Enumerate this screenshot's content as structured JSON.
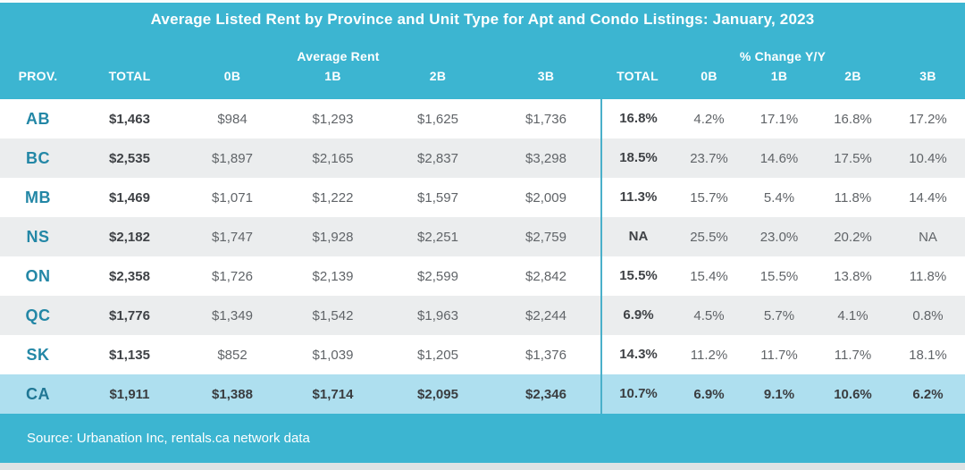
{
  "title": "Average Listed Rent by Province and Unit Type for Apt and Condo Listings: January, 2023",
  "header": {
    "prov_label": "PROV.",
    "rent_group_label": "Average Rent",
    "change_group_label": "% Change Y/Y",
    "rent_columns": [
      "TOTAL",
      "0B",
      "1B",
      "2B",
      "3B"
    ],
    "change_columns": [
      "TOTAL",
      "0B",
      "1B",
      "2B",
      "3B"
    ]
  },
  "rows": [
    {
      "prov": "AB",
      "rent": [
        "$1,463",
        "$984",
        "$1,293",
        "$1,625",
        "$1,736"
      ],
      "change": [
        "16.8%",
        "4.2%",
        "17.1%",
        "16.8%",
        "17.2%"
      ],
      "highlight": false
    },
    {
      "prov": "BC",
      "rent": [
        "$2,535",
        "$1,897",
        "$2,165",
        "$2,837",
        "$3,298"
      ],
      "change": [
        "18.5%",
        "23.7%",
        "14.6%",
        "17.5%",
        "10.4%"
      ],
      "highlight": false
    },
    {
      "prov": "MB",
      "rent": [
        "$1,469",
        "$1,071",
        "$1,222",
        "$1,597",
        "$2,009"
      ],
      "change": [
        "11.3%",
        "15.7%",
        "5.4%",
        "11.8%",
        "14.4%"
      ],
      "highlight": false
    },
    {
      "prov": "NS",
      "rent": [
        "$2,182",
        "$1,747",
        "$1,928",
        "$2,251",
        "$2,759"
      ],
      "change": [
        "NA",
        "25.5%",
        "23.0%",
        "20.2%",
        "NA"
      ],
      "highlight": false
    },
    {
      "prov": "ON",
      "rent": [
        "$2,358",
        "$1,726",
        "$2,139",
        "$2,599",
        "$2,842"
      ],
      "change": [
        "15.5%",
        "15.4%",
        "15.5%",
        "13.8%",
        "11.8%"
      ],
      "highlight": false
    },
    {
      "prov": "QC",
      "rent": [
        "$1,776",
        "$1,349",
        "$1,542",
        "$1,963",
        "$2,244"
      ],
      "change": [
        "6.9%",
        "4.5%",
        "5.7%",
        "4.1%",
        "0.8%"
      ],
      "highlight": false
    },
    {
      "prov": "SK",
      "rent": [
        "$1,135",
        "$852",
        "$1,039",
        "$1,205",
        "$1,376"
      ],
      "change": [
        "14.3%",
        "11.2%",
        "11.7%",
        "11.7%",
        "18.1%"
      ],
      "highlight": false
    },
    {
      "prov": "CA",
      "rent": [
        "$1,911",
        "$1,388",
        "$1,714",
        "$2,095",
        "$2,346"
      ],
      "change": [
        "10.7%",
        "6.9%",
        "9.1%",
        "10.6%",
        "6.2%"
      ],
      "highlight": true
    }
  ],
  "footer": {
    "source": "Source: Urbanation Inc, rentals.ca network data"
  },
  "colors": {
    "header_teal": "#3cb5d1",
    "highlight_row": "#aedfef",
    "alt_row": "#ebedee",
    "province_text": "#2387a6",
    "divider_line": "#4ab0ca",
    "bottom_strip": "#dde3e5"
  },
  "chart_data": {
    "type": "table",
    "title": "Average Listed Rent by Province and Unit Type for Apt and Condo Listings: January, 2023",
    "column_groups": [
      "Average Rent",
      "% Change Y/Y"
    ],
    "columns": [
      "PROV.",
      "Rent TOTAL",
      "Rent 0B",
      "Rent 1B",
      "Rent 2B",
      "Rent 3B",
      "Change TOTAL",
      "Change 0B",
      "Change 1B",
      "Change 2B",
      "Change 3B"
    ],
    "rows": [
      [
        "AB",
        "$1,463",
        "$984",
        "$1,293",
        "$1,625",
        "$1,736",
        "16.8%",
        "4.2%",
        "17.1%",
        "16.8%",
        "17.2%"
      ],
      [
        "BC",
        "$2,535",
        "$1,897",
        "$2,165",
        "$2,837",
        "$3,298",
        "18.5%",
        "23.7%",
        "14.6%",
        "17.5%",
        "10.4%"
      ],
      [
        "MB",
        "$1,469",
        "$1,071",
        "$1,222",
        "$1,597",
        "$2,009",
        "11.3%",
        "15.7%",
        "5.4%",
        "11.8%",
        "14.4%"
      ],
      [
        "NS",
        "$2,182",
        "$1,747",
        "$1,928",
        "$2,251",
        "$2,759",
        "NA",
        "25.5%",
        "23.0%",
        "20.2%",
        "NA"
      ],
      [
        "ON",
        "$2,358",
        "$1,726",
        "$2,139",
        "$2,599",
        "$2,842",
        "15.5%",
        "15.4%",
        "15.5%",
        "13.8%",
        "11.8%"
      ],
      [
        "QC",
        "$1,776",
        "$1,349",
        "$1,542",
        "$1,963",
        "$2,244",
        "6.9%",
        "4.5%",
        "5.7%",
        "4.1%",
        "0.8%"
      ],
      [
        "SK",
        "$1,135",
        "$852",
        "$1,039",
        "$1,205",
        "$1,376",
        "14.3%",
        "11.2%",
        "11.7%",
        "11.7%",
        "18.1%"
      ],
      [
        "CA",
        "$1,911",
        "$1,388",
        "$1,714",
        "$2,095",
        "$2,346",
        "10.7%",
        "6.9%",
        "9.1%",
        "10.6%",
        "6.2%"
      ]
    ],
    "highlighted_row": "CA",
    "source": "Source: Urbanation Inc, rentals.ca network data"
  }
}
